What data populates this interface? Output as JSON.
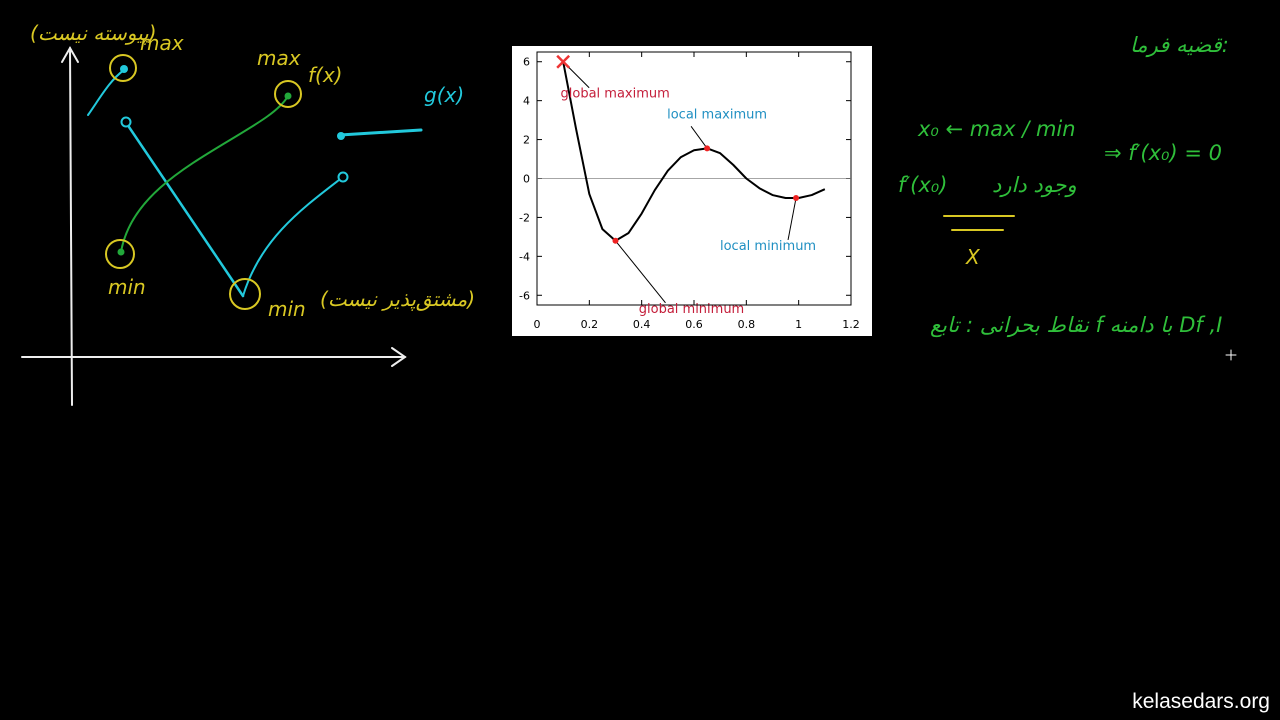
{
  "chart_data": {
    "type": "line",
    "x": [
      0.1,
      0.15,
      0.2,
      0.25,
      0.3,
      0.35,
      0.4,
      0.45,
      0.5,
      0.55,
      0.6,
      0.65,
      0.7,
      0.75,
      0.8,
      0.85,
      0.9,
      0.95,
      1.0,
      1.05,
      1.1
    ],
    "values": [
      6,
      2.5,
      -0.8,
      -2.6,
      -3.2,
      -2.8,
      -1.8,
      -0.6,
      0.4,
      1.1,
      1.45,
      1.55,
      1.3,
      0.7,
      0.0,
      -0.5,
      -0.85,
      -1.0,
      -1.0,
      -0.85,
      -0.55
    ],
    "color": "#000000",
    "xlim": [
      0,
      1.2
    ],
    "ylim": [
      -6.5,
      6.5
    ],
    "xticks": [
      0,
      0.2,
      0.4,
      0.6,
      0.8,
      1,
      1.2
    ],
    "yticks": [
      -6,
      -4,
      -2,
      0,
      2,
      4,
      6
    ],
    "annotations": [
      {
        "text": "global maximum",
        "x": 0.1,
        "y": 6,
        "color": "#c41e3a"
      },
      {
        "text": "local maximum",
        "x": 0.65,
        "y": 1.55,
        "color": "#1f8fc2"
      },
      {
        "text": "local minimum",
        "x": 0.99,
        "y": -1,
        "color": "#1f8fc2"
      },
      {
        "text": "global minimum",
        "x": 0.3,
        "y": -3.2,
        "color": "#c41e3a"
      }
    ]
  },
  "board": {
    "notes": [
      "(پیوسته نیست)",
      "max",
      "max",
      "f(x)",
      "g(x)",
      "min",
      "min",
      "(مشتق‌پذیر نیست)",
      "قضیه فرما:",
      "x₀ ← max / min",
      "⇒ f′(x₀) = 0",
      "f′(x₀)",
      "وجود دارد",
      "X",
      "نقاط بحرانی : تابع f با دامنه Df ,I"
    ]
  },
  "watermark": "kelasedars.org"
}
